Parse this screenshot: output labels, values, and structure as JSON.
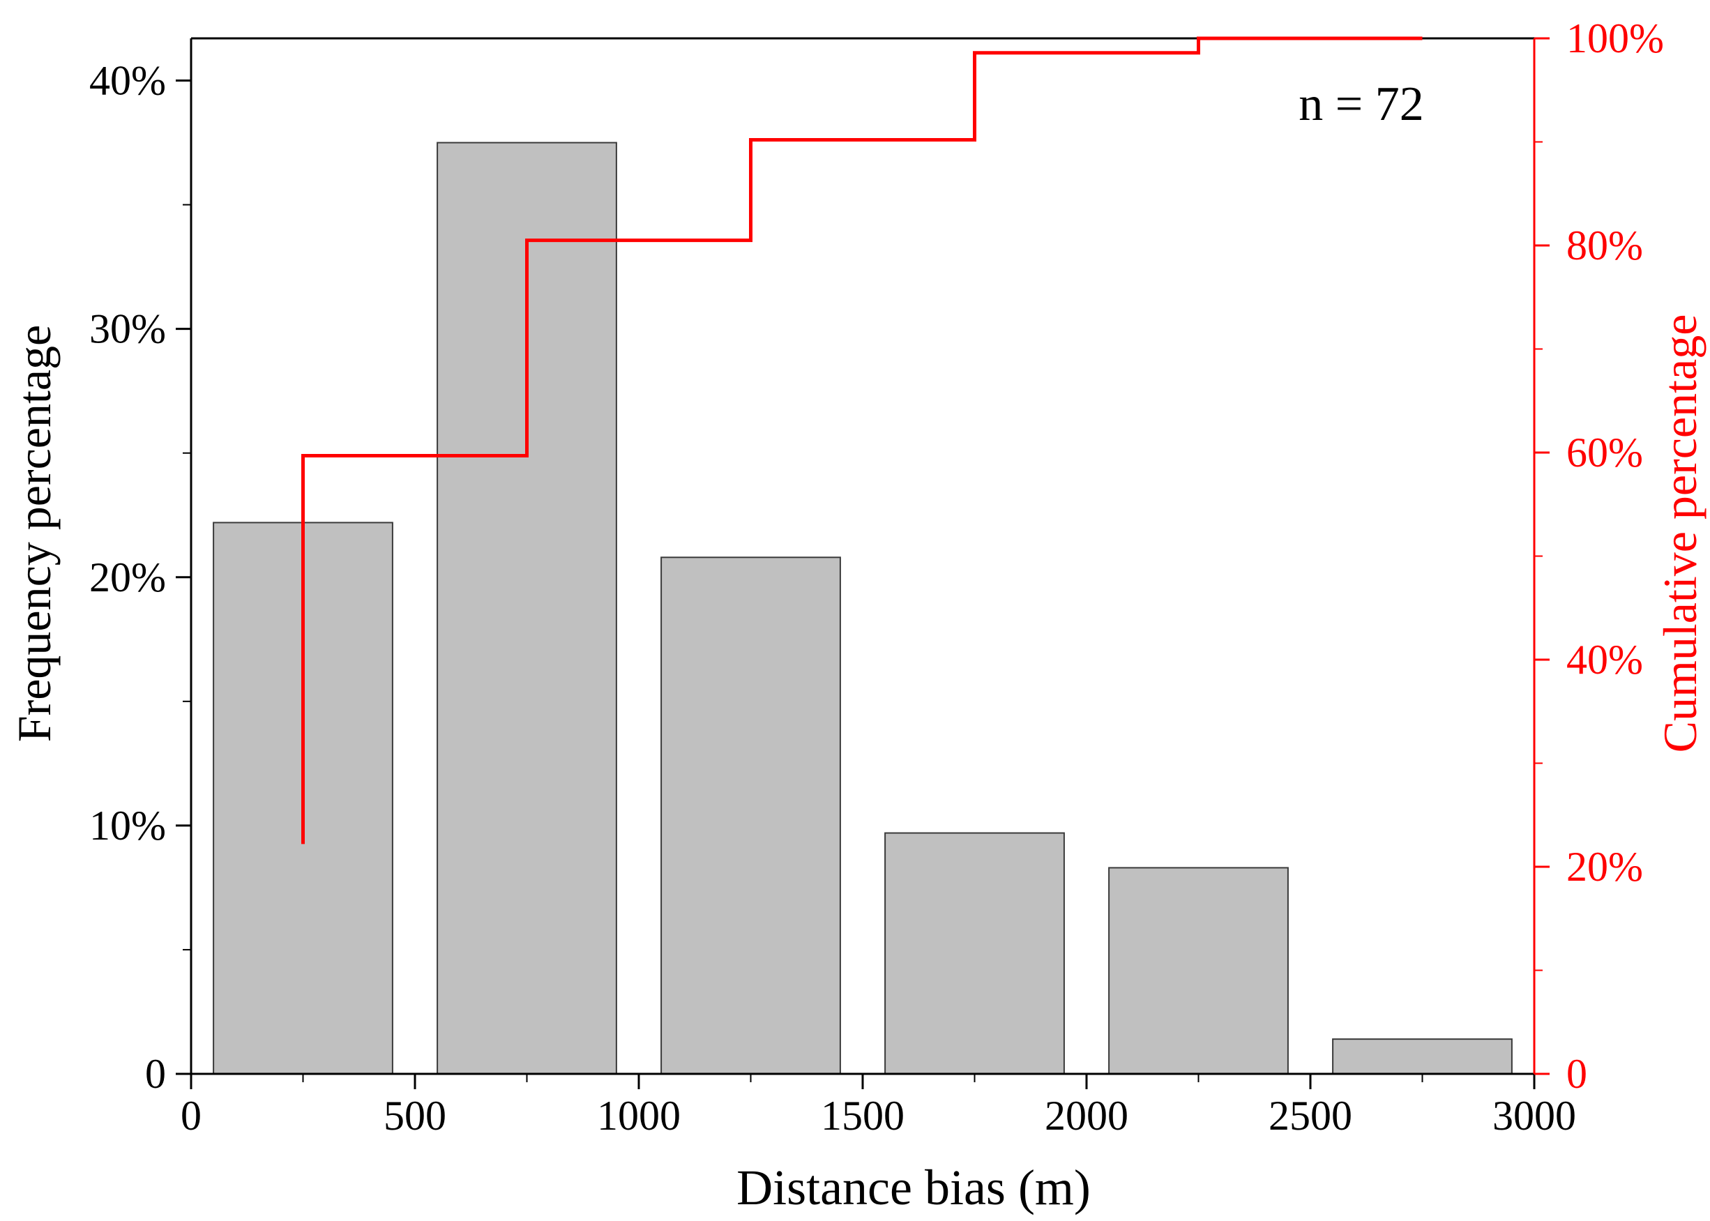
{
  "chart_data": {
    "type": "bar",
    "xlabel": "Distance bias (m)",
    "ylabel_left": "Frequency percentage",
    "ylabel_right": "Cumulative percentage",
    "annotation": "n = 72",
    "xlim": [
      0,
      3000
    ],
    "ylim_left": [
      0,
      0.417
    ],
    "ylim_right": [
      0,
      1.0
    ],
    "x_ticks": [
      {
        "value": 0,
        "label": "0"
      },
      {
        "value": 500,
        "label": "500"
      },
      {
        "value": 1000,
        "label": "1000"
      },
      {
        "value": 1500,
        "label": "1500"
      },
      {
        "value": 2000,
        "label": "2000"
      },
      {
        "value": 2500,
        "label": "2500"
      },
      {
        "value": 3000,
        "label": "3000"
      }
    ],
    "x_minor_ticks": [
      250,
      750,
      1250,
      1750,
      2250,
      2750
    ],
    "y_left_ticks": [
      {
        "value": 0,
        "label": "0"
      },
      {
        "value": 0.1,
        "label": "10%"
      },
      {
        "value": 0.2,
        "label": "20%"
      },
      {
        "value": 0.3,
        "label": "30%"
      },
      {
        "value": 0.4,
        "label": "40%"
      }
    ],
    "y_left_minor_ticks": [
      0.05,
      0.15,
      0.25,
      0.35
    ],
    "y_right_ticks": [
      {
        "value": 0,
        "label": "0"
      },
      {
        "value": 0.2,
        "label": "20%"
      },
      {
        "value": 0.4,
        "label": "40%"
      },
      {
        "value": 0.6,
        "label": "60%"
      },
      {
        "value": 0.8,
        "label": "80%"
      },
      {
        "value": 1.0,
        "label": "100%"
      }
    ],
    "y_right_minor_ticks": [
      0.1,
      0.3,
      0.5,
      0.7,
      0.9
    ],
    "bars": [
      {
        "x0": 50,
        "x1": 450,
        "value": 0.222
      },
      {
        "x0": 550,
        "x1": 950,
        "value": 0.375
      },
      {
        "x0": 1050,
        "x1": 1450,
        "value": 0.208
      },
      {
        "x0": 1550,
        "x1": 1950,
        "value": 0.097
      },
      {
        "x0": 2050,
        "x1": 2450,
        "value": 0.083
      },
      {
        "x0": 2550,
        "x1": 2950,
        "value": 0.014
      }
    ],
    "cumulative": {
      "x": [
        250,
        750,
        1250,
        1750,
        2250,
        2750
      ],
      "values": [
        0.222,
        0.597,
        0.805,
        0.902,
        0.986,
        1.0
      ]
    },
    "colors": {
      "bar_fill": "#c0c0c0",
      "bar_stroke": "#3a3a3a",
      "axis": "#000000",
      "cumulative": "#ff0000"
    }
  }
}
